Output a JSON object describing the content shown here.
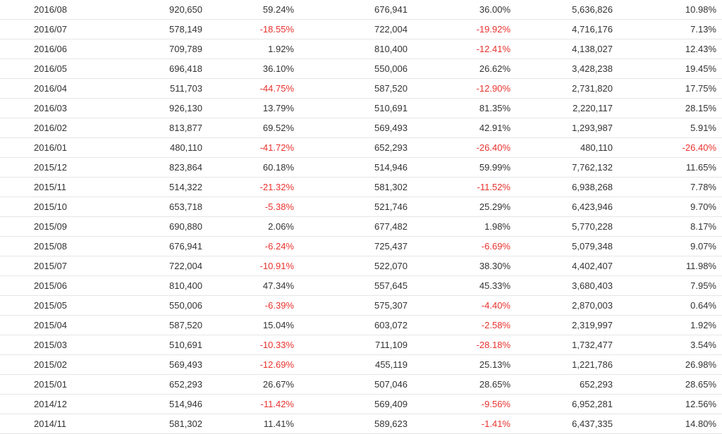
{
  "colors": {
    "text": "#333333",
    "negative": "#e8322d",
    "row_border": "#e6e6e6"
  },
  "table": {
    "rows": [
      [
        "2016/08",
        "920,650",
        "59.24%",
        "676,941",
        "36.00%",
        "5,636,826",
        "10.98%"
      ],
      [
        "2016/07",
        "578,149",
        "-18.55%",
        "722,004",
        "-19.92%",
        "4,716,176",
        "7.13%"
      ],
      [
        "2016/06",
        "709,789",
        "1.92%",
        "810,400",
        "-12.41%",
        "4,138,027",
        "12.43%"
      ],
      [
        "2016/05",
        "696,418",
        "36.10%",
        "550,006",
        "26.62%",
        "3,428,238",
        "19.45%"
      ],
      [
        "2016/04",
        "511,703",
        "-44.75%",
        "587,520",
        "-12.90%",
        "2,731,820",
        "17.75%"
      ],
      [
        "2016/03",
        "926,130",
        "13.79%",
        "510,691",
        "81.35%",
        "2,220,117",
        "28.15%"
      ],
      [
        "2016/02",
        "813,877",
        "69.52%",
        "569,493",
        "42.91%",
        "1,293,987",
        "5.91%"
      ],
      [
        "2016/01",
        "480,110",
        "-41.72%",
        "652,293",
        "-26.40%",
        "480,110",
        "-26.40%"
      ],
      [
        "2015/12",
        "823,864",
        "60.18%",
        "514,946",
        "59.99%",
        "7,762,132",
        "11.65%"
      ],
      [
        "2015/11",
        "514,322",
        "-21.32%",
        "581,302",
        "-11.52%",
        "6,938,268",
        "7.78%"
      ],
      [
        "2015/10",
        "653,718",
        "-5.38%",
        "521,746",
        "25.29%",
        "6,423,946",
        "9.70%"
      ],
      [
        "2015/09",
        "690,880",
        "2.06%",
        "677,482",
        "1.98%",
        "5,770,228",
        "8.17%"
      ],
      [
        "2015/08",
        "676,941",
        "-6.24%",
        "725,437",
        "-6.69%",
        "5,079,348",
        "9.07%"
      ],
      [
        "2015/07",
        "722,004",
        "-10.91%",
        "522,070",
        "38.30%",
        "4,402,407",
        "11.98%"
      ],
      [
        "2015/06",
        "810,400",
        "47.34%",
        "557,645",
        "45.33%",
        "3,680,403",
        "7.95%"
      ],
      [
        "2015/05",
        "550,006",
        "-6.39%",
        "575,307",
        "-4.40%",
        "2,870,003",
        "0.64%"
      ],
      [
        "2015/04",
        "587,520",
        "15.04%",
        "603,072",
        "-2.58%",
        "2,319,997",
        "1.92%"
      ],
      [
        "2015/03",
        "510,691",
        "-10.33%",
        "711,109",
        "-28.18%",
        "1,732,477",
        "3.54%"
      ],
      [
        "2015/02",
        "569,493",
        "-12.69%",
        "455,119",
        "25.13%",
        "1,221,786",
        "26.98%"
      ],
      [
        "2015/01",
        "652,293",
        "26.67%",
        "507,046",
        "28.65%",
        "652,293",
        "28.65%"
      ],
      [
        "2014/12",
        "514,946",
        "-11.42%",
        "569,409",
        "-9.56%",
        "6,952,281",
        "12.56%"
      ],
      [
        "2014/11",
        "581,302",
        "11.41%",
        "589,623",
        "-1.41%",
        "6,437,335",
        "14.80%"
      ]
    ]
  }
}
